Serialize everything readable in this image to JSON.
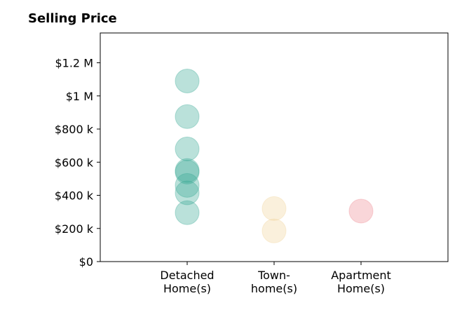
{
  "chart_data": {
    "type": "scatter",
    "title": "Selling Price",
    "xlabel": "",
    "ylabel": "",
    "categories": [
      [
        "Detached",
        "Home(s)"
      ],
      [
        "Town-",
        "home(s)"
      ],
      [
        "Apartment",
        "Home(s)"
      ]
    ],
    "ylim": [
      0,
      1380000
    ],
    "y_ticks": [
      0,
      200000,
      400000,
      600000,
      800000,
      1000000,
      1200000
    ],
    "y_tick_labels": [
      "$0",
      "$200 k",
      "$400 k",
      "$600 k",
      "$800 k",
      "$1 M",
      "$1.2 M"
    ],
    "grid": false,
    "legend": "none",
    "series": [
      {
        "category": 0,
        "color": "#3aaa96",
        "values": [
          1090000,
          875000,
          680000,
          550000,
          540000,
          460000,
          415000,
          295000
        ]
      },
      {
        "category": 1,
        "color": "#f2d59b",
        "values": [
          320000,
          185000
        ]
      },
      {
        "category": 2,
        "color": "#ee8a92",
        "values": [
          305000
        ]
      }
    ]
  }
}
